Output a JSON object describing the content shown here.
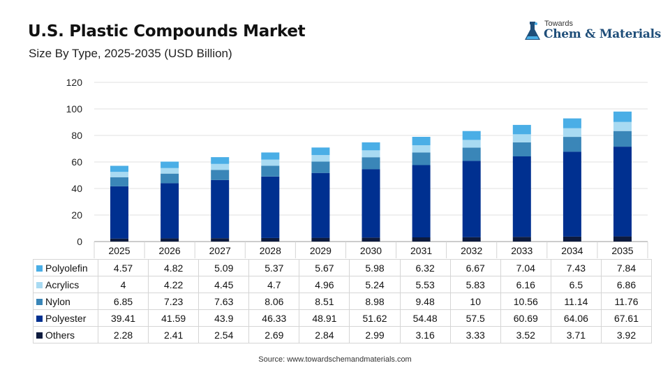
{
  "header": {
    "title": "U.S. Plastic Compounds Market",
    "subtitle": "Size By Type, 2025-2035 (USD Billion)"
  },
  "logo": {
    "small": "Towards",
    "big": "Chem & Materials",
    "color": "#1f4e79"
  },
  "source": "Source: www.towardschemandmaterials.com",
  "chart_data": {
    "type": "bar",
    "stacked": true,
    "title": "U.S. Plastic Compounds Market",
    "subtitle": "Size By Type, 2025-2035 (USD Billion)",
    "xlabel": "",
    "ylabel": "",
    "ylim": [
      0,
      120
    ],
    "yticks": [
      0,
      20,
      40,
      60,
      80,
      100,
      120
    ],
    "grid": true,
    "legend": "data table below chart",
    "categories": [
      "2025",
      "2026",
      "2027",
      "2028",
      "2029",
      "2030",
      "2031",
      "2032",
      "2033",
      "2034",
      "2035"
    ],
    "series": [
      {
        "name": "Others",
        "color": "#0d1b3e",
        "values": [
          2.28,
          2.41,
          2.54,
          2.69,
          2.84,
          2.99,
          3.16,
          3.33,
          3.52,
          3.71,
          3.92
        ]
      },
      {
        "name": "Polyester",
        "color": "#003090",
        "values": [
          39.41,
          41.59,
          43.9,
          46.33,
          48.91,
          51.62,
          54.48,
          57.5,
          60.69,
          64.06,
          67.61
        ]
      },
      {
        "name": "Nylon",
        "color": "#3a86b8",
        "values": [
          6.85,
          7.23,
          7.63,
          8.06,
          8.51,
          8.98,
          9.48,
          10,
          10.56,
          11.14,
          11.76
        ]
      },
      {
        "name": "Acrylics",
        "color": "#a8daf2",
        "values": [
          4,
          4.22,
          4.45,
          4.7,
          4.96,
          5.24,
          5.53,
          5.83,
          6.16,
          6.5,
          6.86
        ]
      },
      {
        "name": "Polyolefin",
        "color": "#4aaee6",
        "values": [
          4.57,
          4.82,
          5.09,
          5.37,
          5.67,
          5.98,
          6.32,
          6.67,
          7.04,
          7.43,
          7.84
        ]
      }
    ],
    "table_rows": [
      {
        "name": "Polyolefin",
        "color": "#4aaee6",
        "values": [
          "4.57",
          "4.82",
          "5.09",
          "5.37",
          "5.67",
          "5.98",
          "6.32",
          "6.67",
          "7.04",
          "7.43",
          "7.84"
        ]
      },
      {
        "name": "Acrylics",
        "color": "#a8daf2",
        "values": [
          "4",
          "4.22",
          "4.45",
          "4.7",
          "4.96",
          "5.24",
          "5.53",
          "5.83",
          "6.16",
          "6.5",
          "6.86"
        ]
      },
      {
        "name": "Nylon",
        "color": "#3a86b8",
        "values": [
          "6.85",
          "7.23",
          "7.63",
          "8.06",
          "8.51",
          "8.98",
          "9.48",
          "10",
          "10.56",
          "11.14",
          "11.76"
        ]
      },
      {
        "name": "Polyester",
        "color": "#003090",
        "values": [
          "39.41",
          "41.59",
          "43.9",
          "46.33",
          "48.91",
          "51.62",
          "54.48",
          "57.5",
          "60.69",
          "64.06",
          "67.61"
        ]
      },
      {
        "name": "Others",
        "color": "#0d1b3e",
        "values": [
          "2.28",
          "2.41",
          "2.54",
          "2.69",
          "2.84",
          "2.99",
          "3.16",
          "3.33",
          "3.52",
          "3.71",
          "3.92"
        ]
      }
    ]
  }
}
